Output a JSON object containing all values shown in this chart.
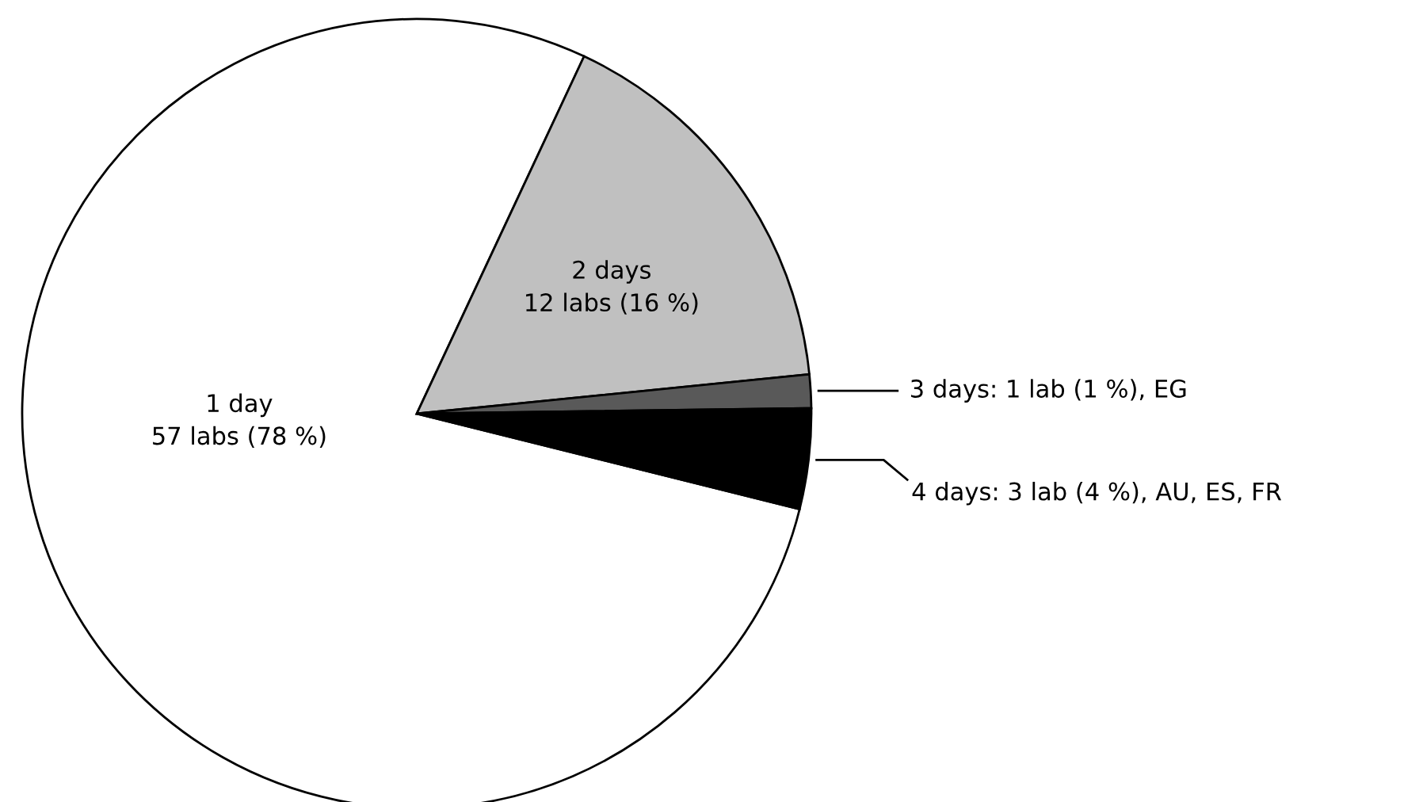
{
  "chart_data": {
    "type": "pie",
    "categories": [
      "1 day\n57 labs (78 %)",
      "2 days\n12 labs (16 %)",
      "3 days: 1 lab (1 %), EG",
      "4 days: 3 lab (4 %), AU, ES, FR"
    ],
    "values": [
      57,
      12,
      1,
      3
    ],
    "colors": [
      "#ffffff",
      "#c0c0c0",
      "#595959",
      "#000000"
    ],
    "legend": false
  }
}
